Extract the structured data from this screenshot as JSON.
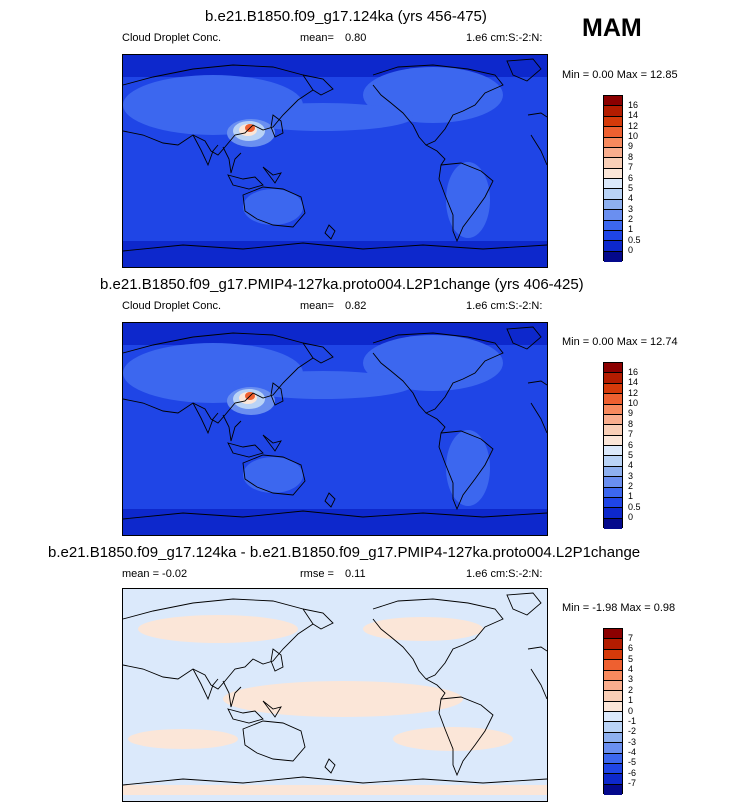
{
  "season": "MAM",
  "panels": [
    {
      "title": "b.e21.B1850.f09_g17.124ka (yrs 456-475)",
      "variable": "Cloud Droplet Conc.",
      "stat_label": "mean=",
      "stat_value": "0.80",
      "units": "1.e6 cm:S:-2:N:",
      "range_text": "Min =   0.00 Max =  12.85",
      "colorbar": {
        "labels": [
          "16",
          "14",
          "12",
          "10",
          "9",
          "8",
          "7",
          "6",
          "5",
          "4",
          "3",
          "2",
          "1",
          "0.5",
          "0"
        ],
        "colors": [
          "#8b0000",
          "#b31c00",
          "#d53a0a",
          "#ee6030",
          "#f78a5e",
          "#f9ae8e",
          "#f9cfb7",
          "#fbe6d8",
          "#dbe9fb",
          "#b9d3f6",
          "#8eb0ef",
          "#6a8ff0",
          "#3c67ef",
          "#1f45e6",
          "#0d28cc",
          "#04098c"
        ]
      }
    },
    {
      "title": "b.e21.B1850.f09_g17.PMIP4-127ka.proto004.L2P1change (yrs 406-425)",
      "variable": "Cloud Droplet Conc.",
      "stat_label": "mean=",
      "stat_value": "0.82",
      "units": "1.e6 cm:S:-2:N:",
      "range_text": "Min =   0.00 Max =  12.74",
      "colorbar": {
        "labels": [
          "16",
          "14",
          "12",
          "10",
          "9",
          "8",
          "7",
          "6",
          "5",
          "4",
          "3",
          "2",
          "1",
          "0.5",
          "0"
        ],
        "colors": [
          "#8b0000",
          "#b31c00",
          "#d53a0a",
          "#ee6030",
          "#f78a5e",
          "#f9ae8e",
          "#f9cfb7",
          "#fbe6d8",
          "#dbe9fb",
          "#b9d3f6",
          "#8eb0ef",
          "#6a8ff0",
          "#3c67ef",
          "#1f45e6",
          "#0d28cc",
          "#04098c"
        ]
      }
    },
    {
      "title": "b.e21.B1850.f09_g17.124ka - b.e21.B1850.f09_g17.PMIP4-127ka.proto004.L2P1change",
      "variable": "mean =  -0.02",
      "stat_label": "rmse =",
      "stat_value": "0.11",
      "units": "1.e6 cm:S:-2:N:",
      "range_text": "Min =  -1.98 Max =   0.98",
      "colorbar": {
        "labels": [
          "7",
          "6",
          "5",
          "4",
          "3",
          "2",
          "1",
          "0",
          "-1",
          "-2",
          "-3",
          "-4",
          "-5",
          "-6",
          "-7"
        ],
        "colors": [
          "#8b0000",
          "#b31c00",
          "#d53a0a",
          "#ee6030",
          "#f78a5e",
          "#f9ae8e",
          "#f9cfb7",
          "#fbe6d8",
          "#dbe9fb",
          "#b9d3f6",
          "#8eb0ef",
          "#6a8ff0",
          "#3c67ef",
          "#1f45e6",
          "#0d28cc",
          "#04098c"
        ]
      }
    }
  ]
}
